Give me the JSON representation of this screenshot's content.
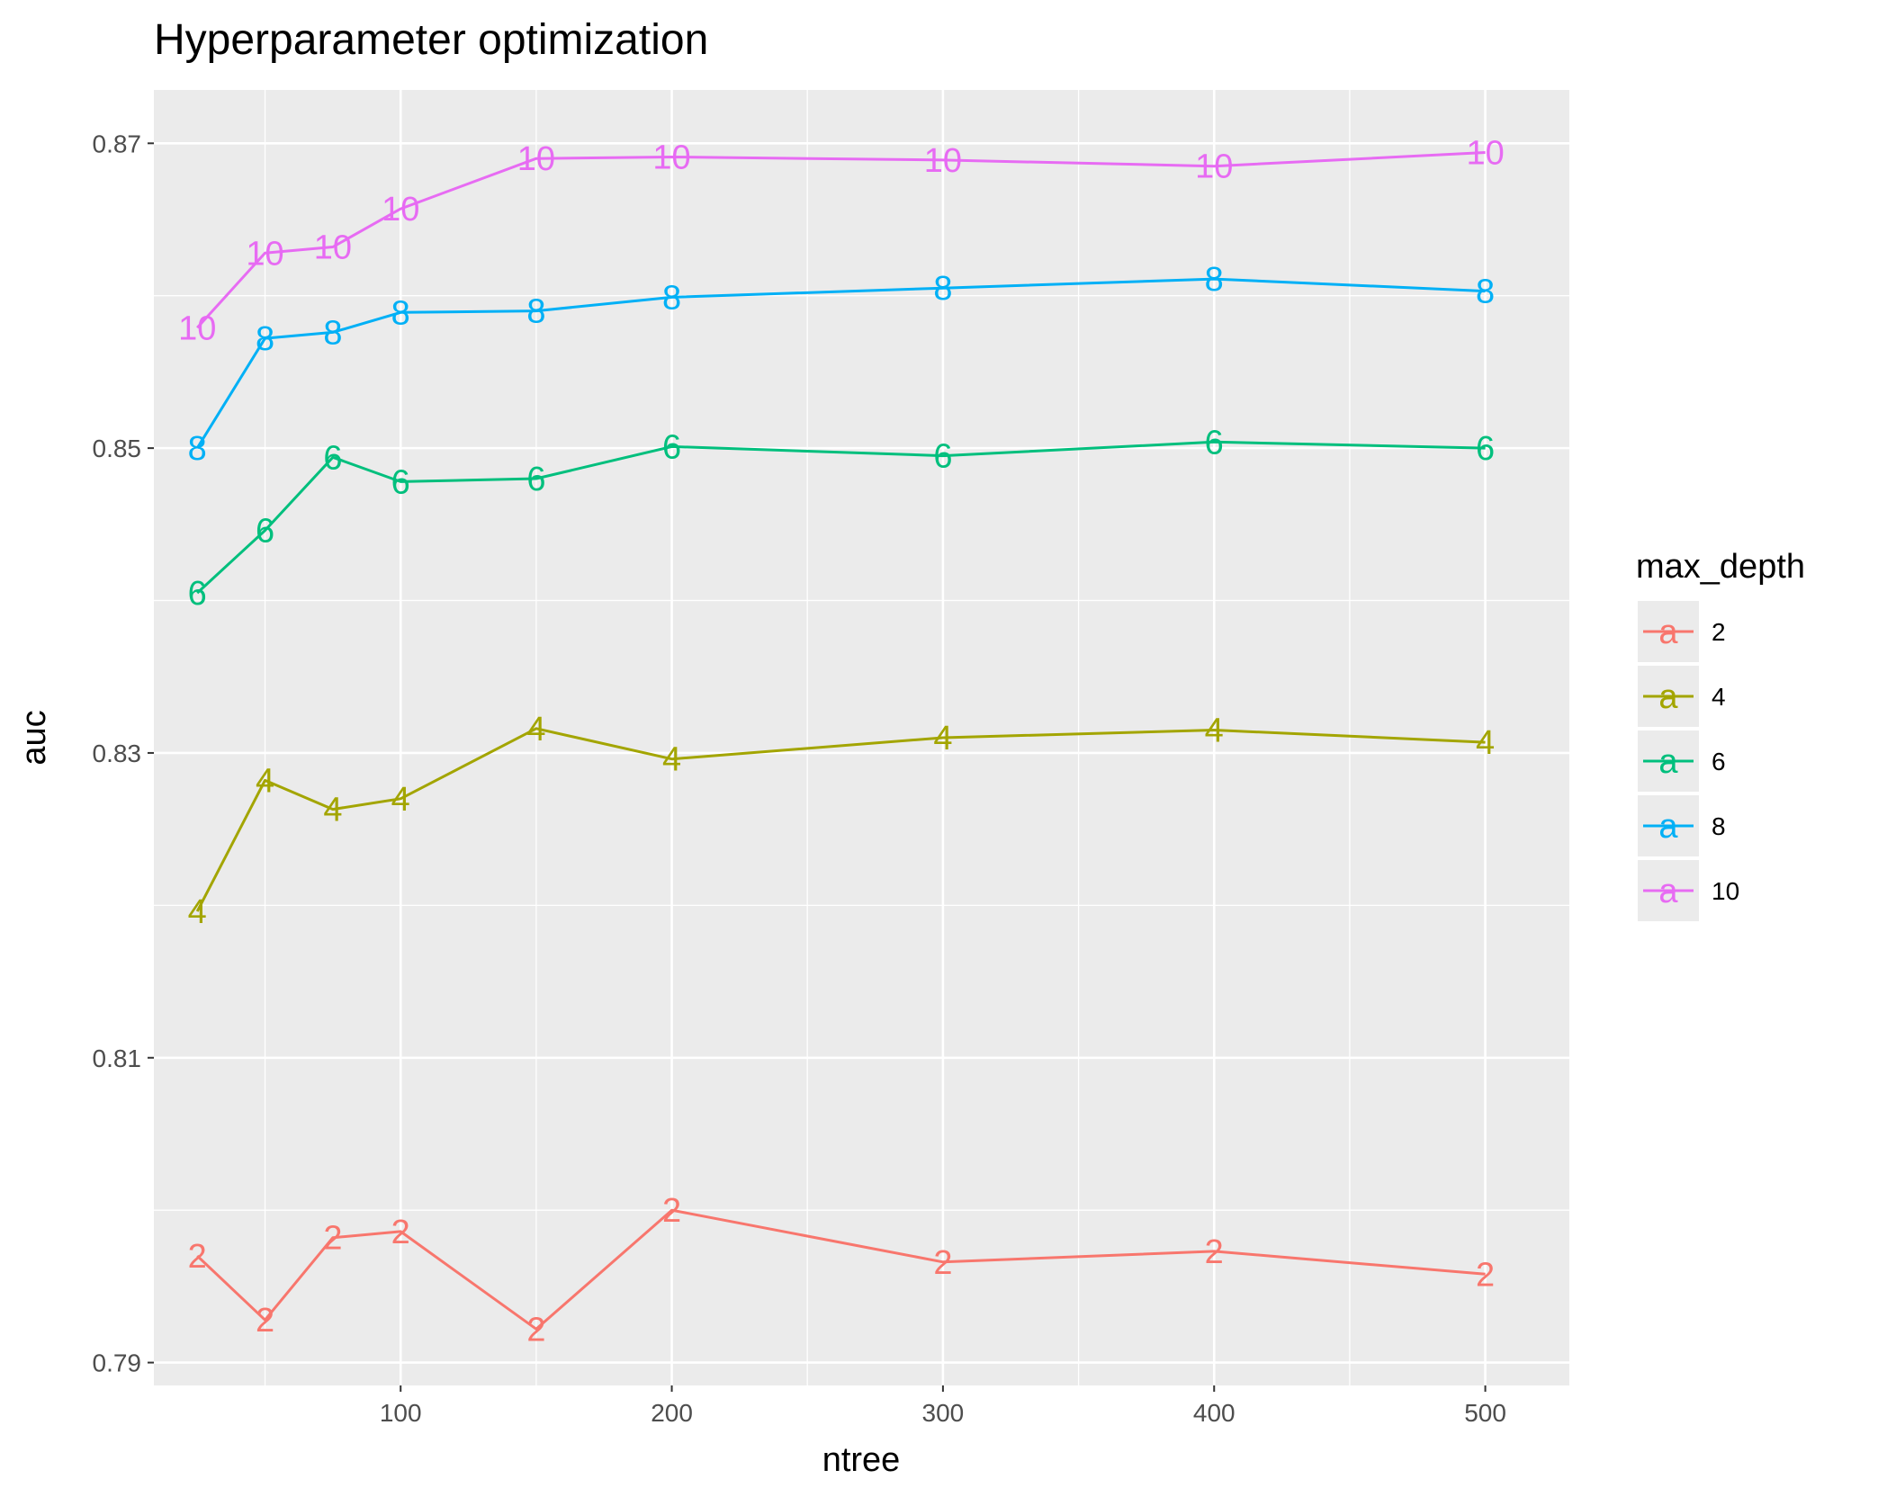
{
  "chart_data": {
    "type": "line",
    "title": "Hyperparameter optimization",
    "xlabel": "ntree",
    "ylabel": "auc",
    "x": [
      25,
      50,
      75,
      100,
      150,
      200,
      300,
      400,
      500
    ],
    "xlim": [
      9,
      531
    ],
    "ylim": [
      0.7885,
      0.8735
    ],
    "x_ticks": [
      100,
      200,
      300,
      400,
      500
    ],
    "x_tick_labels": [
      "100",
      "200",
      "300",
      "400",
      "500"
    ],
    "y_ticks": [
      0.79,
      0.81,
      0.83,
      0.85,
      0.87
    ],
    "y_tick_labels": [
      "0.79",
      "0.81",
      "0.83",
      "0.85",
      "0.87"
    ],
    "grid": true,
    "legend": {
      "title": "max_depth",
      "position": "right",
      "key_glyph": "a"
    },
    "series": [
      {
        "name": "2",
        "color": "#F8766D",
        "values": [
          0.797,
          0.7928,
          0.7982,
          0.7986,
          0.7922,
          0.8,
          0.7966,
          0.7973,
          0.7958
        ]
      },
      {
        "name": "4",
        "color": "#A3A500",
        "values": [
          0.8196,
          0.8282,
          0.8263,
          0.827,
          0.8316,
          0.8296,
          0.831,
          0.8315,
          0.8307
        ]
      },
      {
        "name": "6",
        "color": "#00BF7D",
        "values": [
          0.8405,
          0.8446,
          0.8494,
          0.8478,
          0.848,
          0.8501,
          0.8495,
          0.8504,
          0.85
        ]
      },
      {
        "name": "8",
        "color": "#00B0F6",
        "values": [
          0.85,
          0.8572,
          0.8576,
          0.8589,
          0.859,
          0.8599,
          0.8605,
          0.8611,
          0.8603
        ]
      },
      {
        "name": "10",
        "color": "#E76BF3",
        "values": [
          0.8579,
          0.8628,
          0.8632,
          0.8657,
          0.869,
          0.8691,
          0.8689,
          0.8685,
          0.8694
        ]
      }
    ]
  }
}
